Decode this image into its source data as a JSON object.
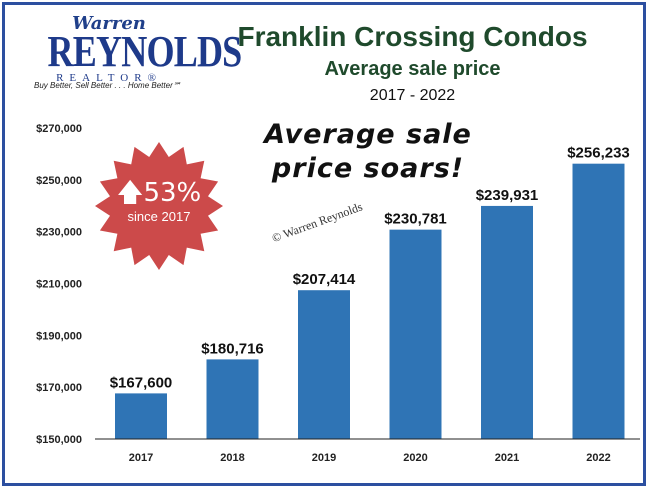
{
  "logo": {
    "script": "Warren",
    "main": "REYNOLDS",
    "sub": "REALTOR®",
    "tagline": "Buy Better, Sell Better . . . Home Better℠"
  },
  "header": {
    "title": "Franklin Crossing Condos",
    "subtitle": "Average sale price",
    "years": "2017 - 2022"
  },
  "headline": {
    "line1": "Average sale",
    "line2": "price soars!"
  },
  "badge": {
    "percent": "53%",
    "since": "since 2017",
    "icon": "arrow-up-icon",
    "color": "#cc4a4a"
  },
  "watermark": "© Warren Reynolds",
  "colors": {
    "bar": "#2f74b5",
    "frame": "#2c4fa0",
    "title": "#1f4a2c"
  },
  "chart_data": {
    "type": "bar",
    "title": "Franklin Crossing Condos",
    "subtitle": "Average sale price",
    "categories": [
      "2017",
      "2018",
      "2019",
      "2020",
      "2021",
      "2022"
    ],
    "values": [
      167600,
      180716,
      207414,
      230781,
      239931,
      256233
    ],
    "value_labels": [
      "$167,600",
      "$180,716",
      "$207,414",
      "$230,781",
      "$239,931",
      "$256,233"
    ],
    "yticks": [
      150000,
      170000,
      190000,
      210000,
      230000,
      250000,
      270000
    ],
    "ytick_labels": [
      "$150,000",
      "$170,000",
      "$190,000",
      "$210,000",
      "$230,000",
      "$250,000",
      "$270,000"
    ],
    "ylim": [
      150000,
      270000
    ],
    "xlabel": "",
    "ylabel": "",
    "grid": false,
    "legend": "none"
  }
}
